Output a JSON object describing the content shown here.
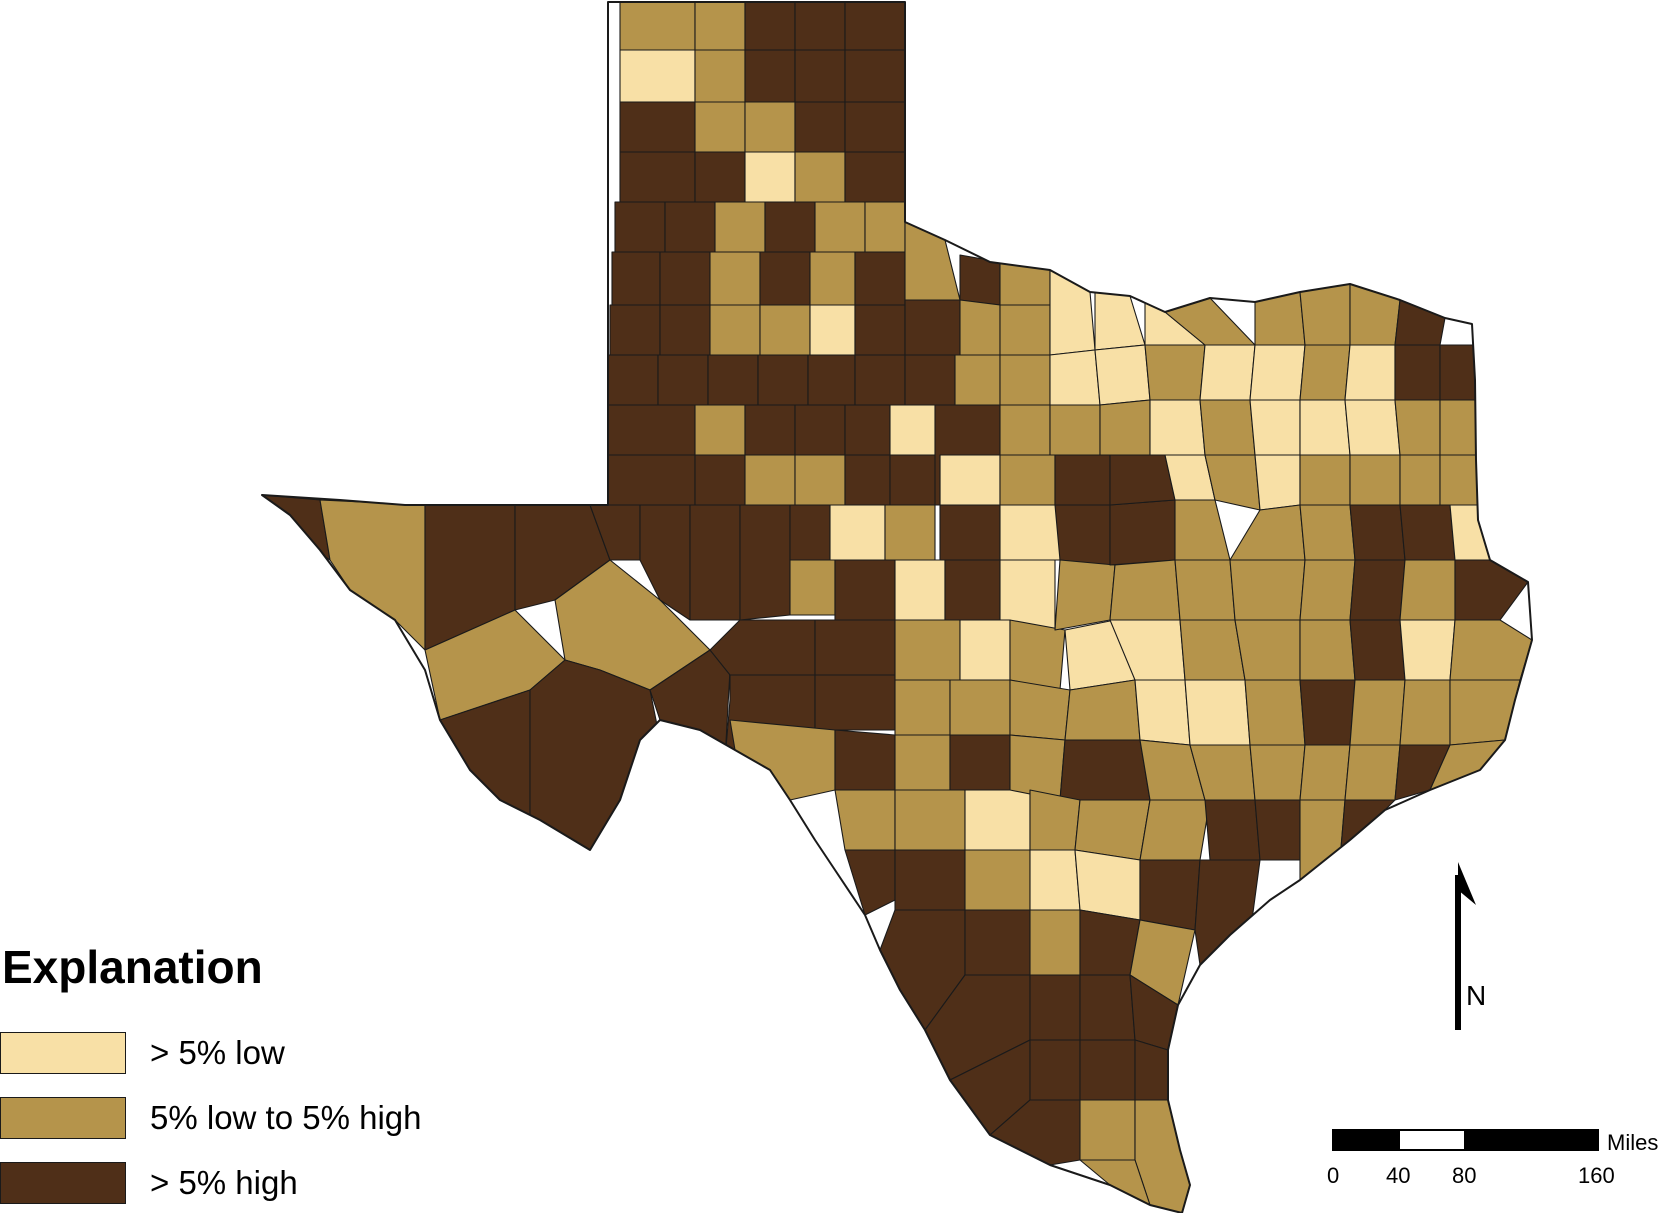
{
  "legend": {
    "title": "Explanation",
    "classes": [
      {
        "label": "> 5% low",
        "color": "#f8e0a6"
      },
      {
        "label": "5% low to 5% high",
        "color": "#b5944b"
      },
      {
        "label": "> 5% high",
        "color": "#4f2f18"
      }
    ]
  },
  "north_arrow": {
    "label": "N"
  },
  "scale_bar": {
    "unit": "Miles",
    "ticks": [
      "0",
      "40",
      "80",
      "160"
    ]
  }
}
